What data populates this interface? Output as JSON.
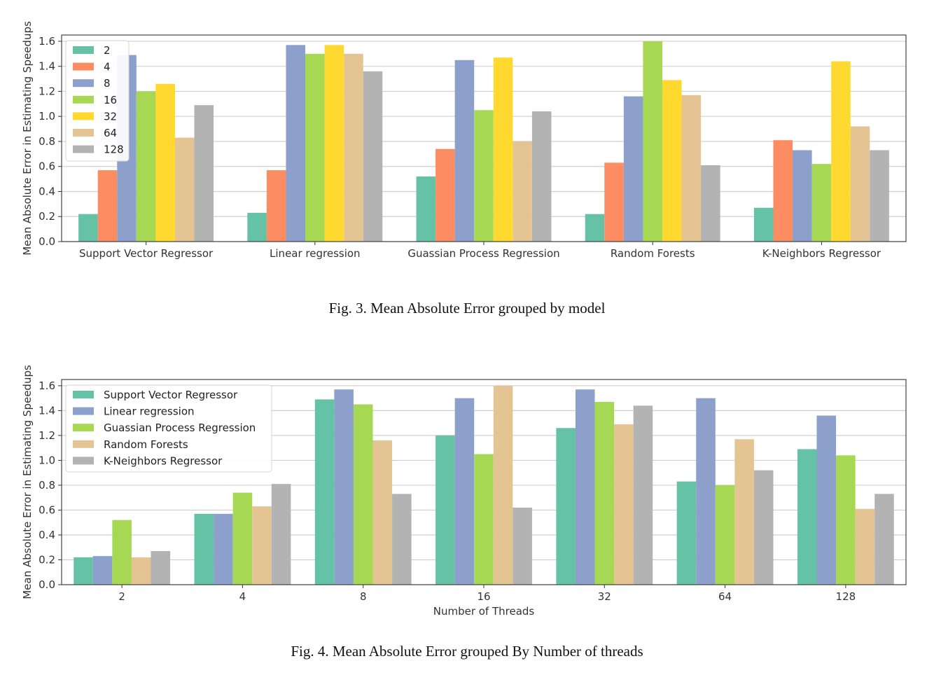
{
  "chart_data": [
    {
      "type": "bar",
      "categories": [
        "Support Vector Regressor",
        "Linear regression",
        "Guassian Process Regression",
        "Random Forests",
        "K-Neighbors Regressor"
      ],
      "series": [
        {
          "name": "2",
          "color": "#66c2a5",
          "values": [
            0.22,
            0.23,
            0.52,
            0.22,
            0.27
          ]
        },
        {
          "name": "4",
          "color": "#fc8d62",
          "values": [
            0.57,
            0.57,
            0.74,
            0.63,
            0.81
          ]
        },
        {
          "name": "8",
          "color": "#8da0cb",
          "values": [
            1.49,
            1.57,
            1.45,
            1.16,
            0.73
          ]
        },
        {
          "name": "16",
          "color": "#a6d854",
          "values": [
            1.2,
            1.5,
            1.05,
            1.6,
            0.62
          ]
        },
        {
          "name": "32",
          "color": "#ffd92f",
          "values": [
            1.26,
            1.57,
            1.47,
            1.29,
            1.44
          ]
        },
        {
          "name": "64",
          "color": "#e5c494",
          "values": [
            0.83,
            1.5,
            0.8,
            1.17,
            0.92
          ]
        },
        {
          "name": "128",
          "color": "#b3b3b3",
          "values": [
            1.09,
            1.36,
            1.04,
            0.61,
            0.73
          ]
        }
      ],
      "xlabel": "",
      "ylabel": "Mean Absolute Error in Estimating Speedups",
      "ylim": [
        0,
        1.65
      ],
      "yticks": [
        "0.0",
        "0.2",
        "0.4",
        "0.6",
        "0.8",
        "1.0",
        "1.2",
        "1.4",
        "1.6"
      ],
      "grid": "horizontal",
      "legend_position": "upper-left",
      "caption": "Fig. 3.  Mean Absolute Error grouped by model"
    },
    {
      "type": "bar",
      "categories": [
        "2",
        "4",
        "8",
        "16",
        "32",
        "64",
        "128"
      ],
      "series": [
        {
          "name": "Support Vector Regressor",
          "color": "#66c2a5",
          "values": [
            0.22,
            0.57,
            1.49,
            1.2,
            1.26,
            0.83,
            1.09
          ]
        },
        {
          "name": "Linear regression",
          "color": "#8da0cb",
          "values": [
            0.23,
            0.57,
            1.57,
            1.5,
            1.57,
            1.5,
            1.36
          ]
        },
        {
          "name": "Guassian Process Regression",
          "color": "#a6d854",
          "values": [
            0.52,
            0.74,
            1.45,
            1.05,
            1.47,
            0.8,
            1.04
          ]
        },
        {
          "name": "Random Forests",
          "color": "#e5c494",
          "values": [
            0.22,
            0.63,
            1.16,
            1.6,
            1.29,
            1.17,
            0.61
          ]
        },
        {
          "name": "K-Neighbors Regressor",
          "color": "#b3b3b3",
          "values": [
            0.27,
            0.81,
            0.73,
            0.62,
            1.44,
            0.92,
            0.73
          ]
        }
      ],
      "xlabel": "Number of Threads",
      "ylabel": "Mean Absolute Error in Estimating Speedups",
      "ylim": [
        0,
        1.65
      ],
      "yticks": [
        "0.0",
        "0.2",
        "0.4",
        "0.6",
        "0.8",
        "1.0",
        "1.2",
        "1.4",
        "1.6"
      ],
      "grid": "horizontal",
      "legend_position": "upper-left",
      "caption": "Fig. 4.  Mean Absolute Error grouped By Number of threads"
    }
  ]
}
